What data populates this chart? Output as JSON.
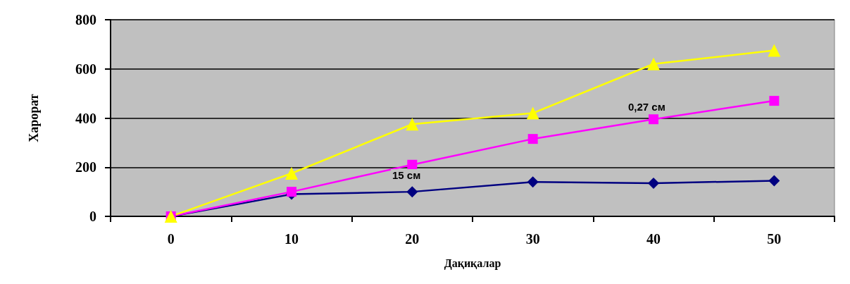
{
  "chart_data": {
    "type": "line",
    "xlabel": "Дақиқалар",
    "ylabel": "Харорат",
    "categories": [
      "0",
      "10",
      "20",
      "30",
      "40",
      "50"
    ],
    "series": [
      {
        "color": "#000080",
        "marker": "diamond",
        "values": [
          0,
          90,
          100,
          140,
          135,
          145
        ]
      },
      {
        "color": "#ff00ff",
        "marker": "square",
        "values": [
          0,
          100,
          210,
          315,
          395,
          470
        ]
      },
      {
        "color": "#ffff00",
        "marker": "triangle",
        "values": [
          0,
          175,
          375,
          420,
          620,
          675
        ]
      }
    ],
    "ylim": [
      0,
      800
    ],
    "yticks": [
      0,
      200,
      400,
      600,
      800
    ],
    "grid": "y",
    "annotations": [
      "15 см",
      "0,27 см"
    ]
  }
}
